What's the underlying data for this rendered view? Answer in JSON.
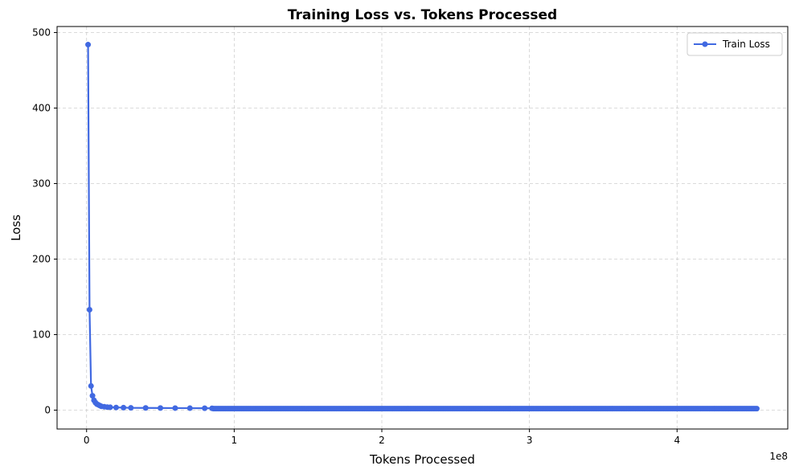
{
  "chart_data": {
    "type": "line",
    "title": "Training Loss vs. Tokens Processed",
    "xlabel": "Tokens Processed",
    "ylabel": "Loss",
    "x_offset_label": "1e8",
    "xlim": [
      -0.2,
      4.75
    ],
    "ylim": [
      -25,
      508
    ],
    "x_ticks": [
      0,
      1,
      2,
      3,
      4
    ],
    "x_tick_labels": [
      "0",
      "1",
      "2",
      "3",
      "4"
    ],
    "y_ticks": [
      0,
      100,
      200,
      300,
      400,
      500
    ],
    "y_tick_labels": [
      "0",
      "100",
      "200",
      "300",
      "400",
      "500"
    ],
    "grid": true,
    "legend_placement": "top-right",
    "color": "#4169e1",
    "series": [
      {
        "name": "Train Loss",
        "x_unit": "1e8",
        "x": [
          0.01,
          0.02,
          0.03,
          0.04,
          0.05,
          0.06,
          0.07,
          0.08,
          0.09,
          0.1,
          0.12,
          0.14,
          0.16,
          0.2,
          0.25,
          0.3,
          0.4,
          0.5,
          0.6,
          0.7,
          0.8,
          0.85
        ],
        "y": [
          484,
          133,
          32,
          19,
          13,
          10,
          8,
          7,
          6,
          5,
          4.5,
          4,
          3.8,
          3.5,
          3.3,
          3.0,
          2.9,
          2.8,
          2.7,
          2.6,
          2.5,
          2.4
        ],
        "tail": {
          "x_start": 0.86,
          "x_end": 4.54,
          "count": 368,
          "y": 2.0
        }
      }
    ]
  }
}
